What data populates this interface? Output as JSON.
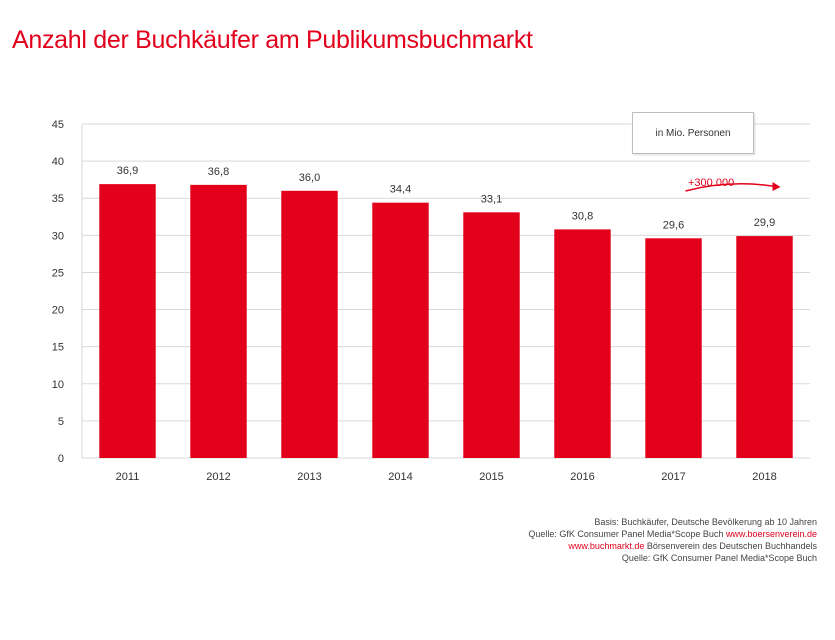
{
  "title": "Anzahl der Buchkäufer am Publikumsbuchmarkt",
  "legend": {
    "label": "in Mio. Personen"
  },
  "annotation": {
    "text": "+300.000"
  },
  "source": {
    "line1": "Basis: Buchkäufer, Deutsche Bevölkerung ab 10 Jahren",
    "line2_text": "Quelle: GfK Consumer Panel Media*Scope Buch",
    "line2_link": "www.boersenverein.de",
    "line3_link": "www.buchmarkt.de",
    "line3_text": "Börsenverein des Deutschen Buchhandels",
    "line4": "Quelle: GfK Consumer Panel Media*Scope Buch"
  },
  "colors": {
    "bar": "#e3001b",
    "accent": "#e3001b",
    "grid": "#d9d9d9",
    "axis_text": "#333333"
  },
  "chart_data": {
    "type": "bar",
    "categories": [
      "2011",
      "2012",
      "2013",
      "2014",
      "2015",
      "2016",
      "2017",
      "2018"
    ],
    "values": [
      36.9,
      36.8,
      36.0,
      34.4,
      33.1,
      30.8,
      29.6,
      29.9
    ],
    "data_labels": [
      "36,9",
      "36,8",
      "36,0",
      "34,4",
      "33,1",
      "30,8",
      "29,6",
      "29,9"
    ],
    "y_ticks": [
      "0",
      "5",
      "10",
      "15",
      "20",
      "25",
      "30",
      "35",
      "40",
      "45"
    ],
    "ylim": [
      0,
      45
    ],
    "grid": true,
    "legend_position": "top-right",
    "title": "Anzahl der Buchkäufer am Publikumsbuchmarkt",
    "xlabel": "",
    "ylabel": ""
  }
}
